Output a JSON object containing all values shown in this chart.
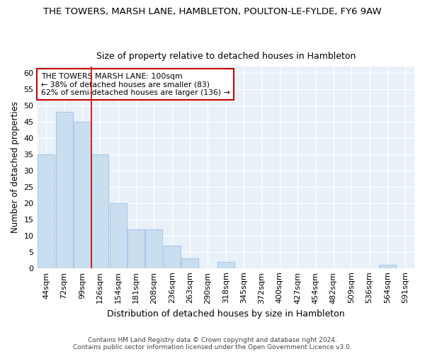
{
  "title": "THE TOWERS, MARSH LANE, HAMBLETON, POULTON-LE-FYLDE, FY6 9AW",
  "subtitle": "Size of property relative to detached houses in Hambleton",
  "xlabel": "Distribution of detached houses by size in Hambleton",
  "ylabel": "Number of detached properties",
  "bar_color": "#c9dff0",
  "bar_edge_color": "#a8c8e8",
  "background_color": "#e8f0f8",
  "grid_color": "#ffffff",
  "fig_bg_color": "#ffffff",
  "categories": [
    "44sqm",
    "72sqm",
    "99sqm",
    "126sqm",
    "154sqm",
    "181sqm",
    "208sqm",
    "236sqm",
    "263sqm",
    "290sqm",
    "318sqm",
    "345sqm",
    "372sqm",
    "400sqm",
    "427sqm",
    "454sqm",
    "482sqm",
    "509sqm",
    "536sqm",
    "564sqm",
    "591sqm"
  ],
  "values": [
    35,
    48,
    45,
    35,
    20,
    12,
    12,
    7,
    3,
    0,
    2,
    0,
    0,
    0,
    0,
    0,
    0,
    0,
    0,
    1,
    0
  ],
  "ylim": [
    0,
    62
  ],
  "yticks": [
    0,
    5,
    10,
    15,
    20,
    25,
    30,
    35,
    40,
    45,
    50,
    55,
    60
  ],
  "vline_index": 2,
  "vline_color": "#cc0000",
  "annotation_line1": "THE TOWERS MARSH LANE: 100sqm",
  "annotation_line2": "← 38% of detached houses are smaller (83)",
  "annotation_line3": "62% of semi-detached houses are larger (136) →",
  "annotation_box_color": "#ffffff",
  "annotation_box_edge": "#cc0000",
  "footer_line1": "Contains HM Land Registry data © Crown copyright and database right 2024.",
  "footer_line2": "Contains public sector information licensed under the Open Government Licence v3.0."
}
